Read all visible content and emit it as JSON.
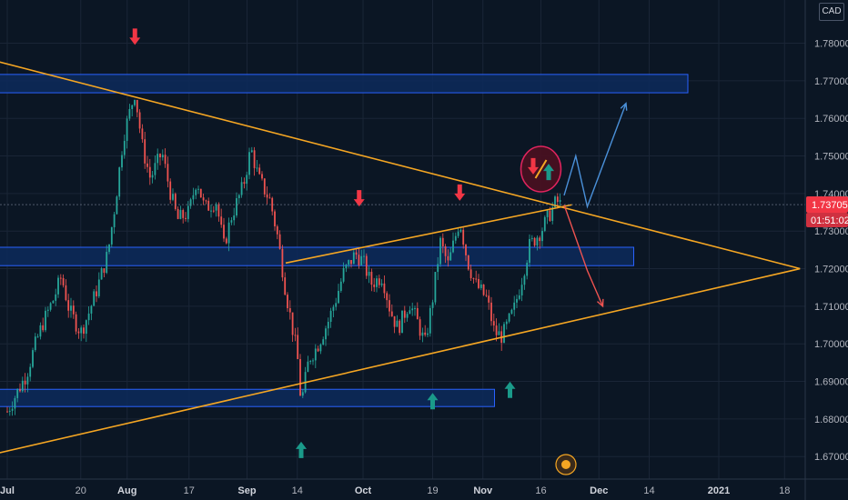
{
  "chart_data": {
    "type": "candlestick",
    "symbol_currency": "CAD",
    "x_tick_labels": [
      "Jul",
      "20",
      "Aug",
      "17",
      "Sep",
      "14",
      "Oct",
      "19",
      "Nov",
      "16",
      "Dec",
      "14",
      "2021",
      "18"
    ],
    "y_tick_labels": [
      "1.67000",
      "1.68000",
      "1.69000",
      "1.70000",
      "1.71000",
      "1.72000",
      "1.73000",
      "1.74000",
      "1.75000",
      "1.76000",
      "1.77000",
      "1.78000"
    ],
    "ylim": [
      1.664,
      1.7915
    ],
    "last_price": {
      "value": 1.73705,
      "label": "1.73705",
      "countdown": "01:51:02"
    },
    "price_series": [
      [
        "2020-07-01",
        1.682
      ],
      [
        "2020-07-03",
        1.686
      ],
      [
        "2020-07-06",
        1.692
      ],
      [
        "2020-07-08",
        1.699
      ],
      [
        "2020-07-10",
        1.705
      ],
      [
        "2020-07-13",
        1.712
      ],
      [
        "2020-07-15",
        1.718
      ],
      [
        "2020-07-17",
        1.709
      ],
      [
        "2020-07-20",
        1.703
      ],
      [
        "2020-07-22",
        1.708
      ],
      [
        "2020-07-24",
        1.714
      ],
      [
        "2020-07-27",
        1.724
      ],
      [
        "2020-07-29",
        1.738
      ],
      [
        "2020-07-31",
        1.755
      ],
      [
        "2020-08-03",
        1.767
      ],
      [
        "2020-08-05",
        1.752
      ],
      [
        "2020-08-07",
        1.744
      ],
      [
        "2020-08-10",
        1.751
      ],
      [
        "2020-08-12",
        1.741
      ],
      [
        "2020-08-14",
        1.733
      ],
      [
        "2020-08-17",
        1.735
      ],
      [
        "2020-08-19",
        1.744
      ],
      [
        "2020-08-21",
        1.736
      ],
      [
        "2020-08-24",
        1.738
      ],
      [
        "2020-08-26",
        1.726
      ],
      [
        "2020-08-28",
        1.734
      ],
      [
        "2020-08-31",
        1.742
      ],
      [
        "2020-09-02",
        1.752
      ],
      [
        "2020-09-04",
        1.744
      ],
      [
        "2020-09-07",
        1.738
      ],
      [
        "2020-09-09",
        1.728
      ],
      [
        "2020-09-11",
        1.714
      ],
      [
        "2020-09-14",
        1.697
      ],
      [
        "2020-09-15",
        1.684
      ],
      [
        "2020-09-17",
        1.696
      ],
      [
        "2020-09-19",
        1.699
      ],
      [
        "2020-09-22",
        1.706
      ],
      [
        "2020-09-24",
        1.712
      ],
      [
        "2020-09-26",
        1.719
      ],
      [
        "2020-09-29",
        1.724
      ],
      [
        "2020-10-01",
        1.722
      ],
      [
        "2020-10-03",
        1.716
      ],
      [
        "2020-10-06",
        1.718
      ],
      [
        "2020-10-08",
        1.709
      ],
      [
        "2020-10-10",
        1.704
      ],
      [
        "2020-10-13",
        1.711
      ],
      [
        "2020-10-15",
        1.706
      ],
      [
        "2020-10-17",
        1.7
      ],
      [
        "2020-10-19",
        1.712
      ],
      [
        "2020-10-21",
        1.727
      ],
      [
        "2020-10-23",
        1.721
      ],
      [
        "2020-10-26",
        1.733
      ],
      [
        "2020-10-28",
        1.722
      ],
      [
        "2020-10-30",
        1.716
      ],
      [
        "2020-11-02",
        1.712
      ],
      [
        "2020-11-04",
        1.703
      ],
      [
        "2020-11-06",
        1.702
      ],
      [
        "2020-11-09",
        1.709
      ],
      [
        "2020-11-11",
        1.717
      ],
      [
        "2020-11-13",
        1.726
      ],
      [
        "2020-11-16",
        1.73
      ],
      [
        "2020-11-18",
        1.734
      ],
      [
        "2020-11-20",
        1.738
      ],
      [
        "2020-11-21",
        1.73705
      ]
    ],
    "horizontal_zones": [
      {
        "x_start": "2020-06-29",
        "x_end": "2020-12-24",
        "y_low": 1.7685,
        "y_high": 1.77
      },
      {
        "x_start": "2020-06-29",
        "x_end": "2020-12-10",
        "y_low": 1.7225,
        "y_high": 1.724
      },
      {
        "x_start": "2020-06-29",
        "x_end": "2020-11-04",
        "y_low": 1.685,
        "y_high": 1.6862
      }
    ],
    "trend_lines": [
      {
        "name": "upper",
        "points": [
          [
            "2020-06-29",
            1.775
          ],
          [
            "2021-01-22",
            1.72
          ]
        ]
      },
      {
        "name": "lower",
        "points": [
          [
            "2020-06-29",
            1.671
          ],
          [
            "2021-01-22",
            1.72
          ]
        ]
      },
      {
        "name": "inner",
        "points": [
          [
            "2020-09-11",
            1.7215
          ],
          [
            "2020-11-24",
            1.737
          ]
        ]
      }
    ],
    "projection_up": [
      [
        "2020-11-22",
        1.7395
      ],
      [
        "2020-11-25",
        1.75
      ],
      [
        "2020-11-28",
        1.7365
      ],
      [
        "2020-12-08",
        1.764
      ]
    ],
    "projection_down": [
      [
        "2020-11-22",
        1.737
      ],
      [
        "2020-11-28",
        1.7195
      ],
      [
        "2020-12-02",
        1.71
      ]
    ],
    "down_arrows": [
      [
        "2020-08-03",
        1.7815
      ],
      [
        "2020-09-30",
        1.7385
      ],
      [
        "2020-10-26",
        1.74
      ],
      [
        "2020-11-14",
        1.747
      ]
    ],
    "up_arrows": [
      [
        "2020-09-15",
        1.672
      ],
      [
        "2020-10-19",
        1.685
      ],
      [
        "2020-11-08",
        1.688
      ],
      [
        "2020-11-18",
        1.746
      ]
    ],
    "colors": {
      "background": "#0b1624",
      "bull": "#26a69a",
      "bear": "#ef5350",
      "trend": "#f5a623",
      "zone_fill": "#0d2a5c",
      "zone_stroke": "#2962ff",
      "projection_up": "#4a90d9",
      "projection_down": "#ef5350",
      "grid": "#1a2536",
      "price_badge": "#f23645",
      "arrow_down": "#f23645",
      "arrow_up": "#1a9a8a"
    }
  }
}
